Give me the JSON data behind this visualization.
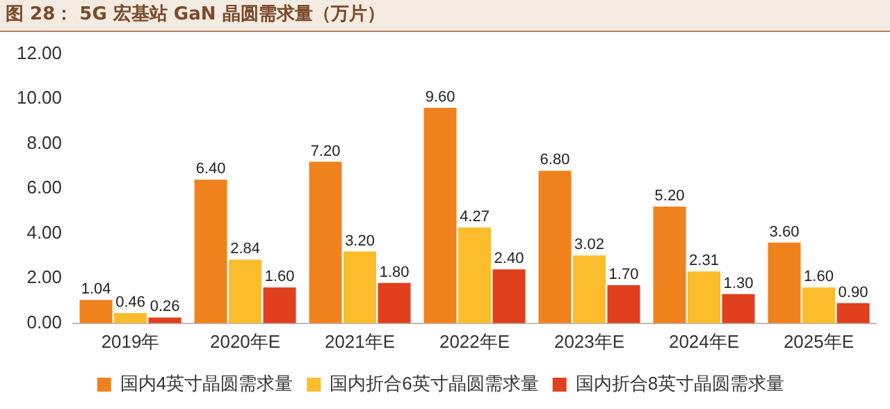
{
  "chart_data": {
    "type": "bar",
    "title": "图 28： 5G 宏基站 GaN 晶圆需求量（万片）",
    "categories": [
      "2019年",
      "2020年E",
      "2021年E",
      "2022年E",
      "2023年E",
      "2024年E",
      "2025年E"
    ],
    "series": [
      {
        "name": "国内4英寸晶圆需求量",
        "color": "#f0821e",
        "values": [
          1.04,
          6.4,
          7.2,
          9.6,
          6.8,
          5.2,
          3.6
        ],
        "value_labels": [
          "1.04",
          "6.40",
          "7.20",
          "9.60",
          "6.80",
          "5.20",
          "3.60"
        ]
      },
      {
        "name": "国内折合6英寸晶圆需求量",
        "color": "#fbbd2c",
        "values": [
          0.46,
          2.84,
          3.2,
          4.27,
          3.02,
          2.31,
          1.6
        ],
        "value_labels": [
          "0.46",
          "2.84",
          "3.20",
          "4.27",
          "3.02",
          "2.31",
          "1.60"
        ]
      },
      {
        "name": "国内折合8英寸晶圆需求量",
        "color": "#e0401e",
        "values": [
          0.26,
          1.6,
          1.8,
          2.4,
          1.7,
          1.3,
          0.9
        ],
        "value_labels": [
          "0.26",
          "1.60",
          "1.80",
          "2.40",
          "1.70",
          "1.30",
          "0.90"
        ]
      }
    ],
    "ylim": [
      0,
      12
    ],
    "yticks": [
      {
        "value": 0,
        "label": "0.00"
      },
      {
        "value": 2,
        "label": "2.00"
      },
      {
        "value": 4,
        "label": "4.00"
      },
      {
        "value": 6,
        "label": "6.00"
      },
      {
        "value": 8,
        "label": "8.00"
      },
      {
        "value": 10,
        "label": "10.00"
      },
      {
        "value": 12,
        "label": "12.00"
      }
    ],
    "grid": false,
    "legend": "bottom"
  }
}
